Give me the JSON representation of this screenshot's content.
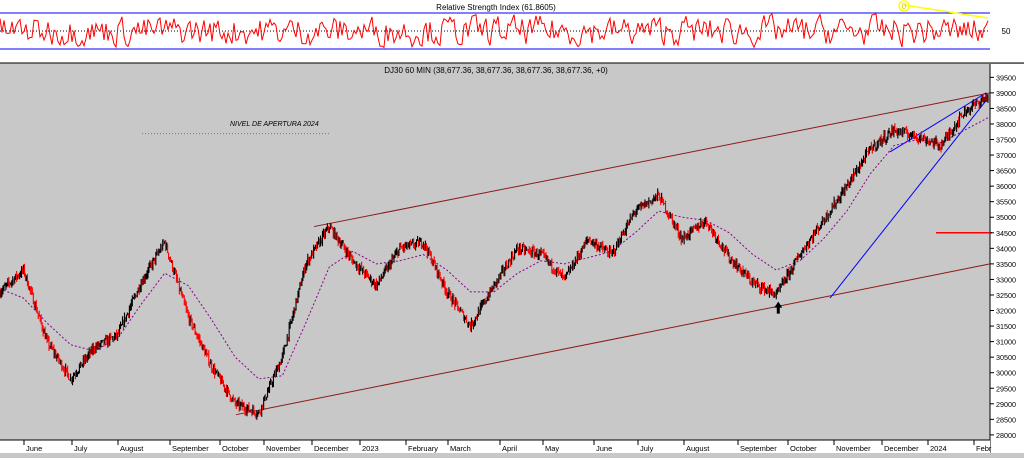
{
  "chart_data": [
    {
      "type": "line",
      "title": "Relative Strength Index (61.8605)",
      "ylabel_ticks": [
        50
      ],
      "ylim": [
        20,
        80
      ],
      "levels": [
        30,
        50,
        70
      ],
      "annotation_marker": "0",
      "colors": {
        "rsi": "#ff0000",
        "levels": "#0000ff",
        "trendline": "#ffff00",
        "marker": "#ffff00"
      }
    },
    {
      "type": "line",
      "title": "DJ30 60 MIN (38,677.36, 38,677.36, 38,677.36, 38,677.36, +0)",
      "annotation": "NIVEL DE APERTURA 2024",
      "annotation_level": 37690,
      "y_ticks": [
        28000,
        28500,
        29000,
        29500,
        30000,
        30500,
        31000,
        31500,
        32000,
        32500,
        33000,
        33500,
        34000,
        34500,
        35000,
        35500,
        36000,
        36500,
        37000,
        37500,
        38000,
        38500,
        39000,
        39500
      ],
      "ylim": [
        27900,
        39800
      ],
      "x_labels": [
        "June",
        "July",
        "August",
        "September",
        "October",
        "November",
        "December",
        "2023",
        "February",
        "March",
        "April",
        "May",
        "June",
        "July",
        "August",
        "September",
        "October",
        "November",
        "December",
        "2024",
        "Febr"
      ],
      "series": [
        {
          "type": "candlestick-trace",
          "values": [
            32600,
            33300,
            31000,
            29800,
            30800,
            31200,
            32900,
            34200,
            31800,
            30200,
            29000,
            28700,
            30500,
            33500,
            34700,
            33600,
            32800,
            34000,
            34200,
            32600,
            31500,
            32800,
            34000,
            33800,
            33000,
            34300,
            33800,
            35200,
            35700,
            34300,
            34900,
            33700,
            32900,
            32500,
            33800,
            34900,
            36000,
            37200,
            37800,
            37600,
            37300,
            38400,
            38900
          ]
        },
        {
          "type": "moving-average",
          "values": [
            32700,
            32400,
            31600,
            30900,
            30700,
            31100,
            32200,
            33200,
            32800,
            31700,
            30500,
            29800,
            29900,
            31600,
            33400,
            33900,
            33500,
            33600,
            33800,
            33300,
            32600,
            32600,
            33200,
            33600,
            33500,
            33700,
            33900,
            34500,
            35200,
            35000,
            34900,
            34500,
            33800,
            33300,
            33600,
            34300,
            35200,
            36400,
            37300,
            37500,
            37400,
            37800,
            38200
          ]
        }
      ],
      "channel": {
        "upper": [
          34700,
          39000
        ],
        "lower": [
          28650,
          33500
        ]
      },
      "wedge": {
        "upper": [
          37100,
          39000
        ],
        "lower": [
          32400,
          38750
        ]
      },
      "support_level": 34500,
      "arrow_annotation": {
        "index": 33,
        "value": 32350
      },
      "colors": {
        "candles": "#000000",
        "down": "#ff0000",
        "ma": "#8b008b",
        "channel": "#8b1a1a",
        "wedge": "#0000ff",
        "level": "#ff0000"
      }
    }
  ]
}
